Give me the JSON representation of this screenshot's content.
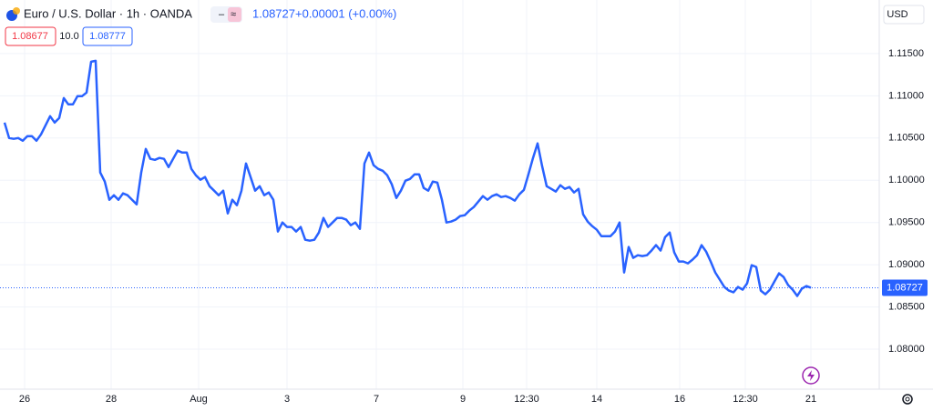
{
  "header": {
    "symbol": "Euro / U.S. Dollar · 1h · OANDA",
    "price": "1.08727",
    "change": "+0.00001 (+0.00%)",
    "bid": "1.08677",
    "spread": "10.0",
    "ask": "1.08777",
    "currency": "USD"
  },
  "chart_data": {
    "type": "line",
    "series": [
      {
        "name": "EURUSD",
        "color": "#2962ff",
        "values": [
          1.10683,
          1.105,
          1.1049,
          1.105,
          1.10468,
          1.10522,
          1.10522,
          1.10468,
          1.10543,
          1.10651,
          1.10758,
          1.10683,
          1.10737,
          1.10973,
          1.10898,
          1.10898,
          1.10995,
          1.10995,
          1.11038,
          1.11403,
          1.11414,
          1.10092,
          1.09984,
          1.09769,
          1.09823,
          1.09769,
          1.09844,
          1.09823,
          1.09769,
          1.09715,
          1.10092,
          1.10371,
          1.10253,
          1.10242,
          1.10264,
          1.10253,
          1.10156,
          1.10253,
          1.1035,
          1.10328,
          1.10328,
          1.10135,
          1.10059,
          1.10006,
          1.10038,
          1.0993,
          1.09877,
          1.09823,
          1.09877,
          1.09608,
          1.09769,
          1.09705,
          1.09877,
          1.10199,
          1.10038,
          1.09877,
          1.0993,
          1.09823,
          1.09855,
          1.09769,
          1.09393,
          1.095,
          1.09447,
          1.09447,
          1.09393,
          1.09447,
          1.09296,
          1.09285,
          1.09296,
          1.09382,
          1.09554,
          1.09447,
          1.095,
          1.09554,
          1.09554,
          1.09533,
          1.09468,
          1.095,
          1.09425,
          1.10199,
          1.10328,
          1.10178,
          1.10135,
          1.10113,
          1.10059,
          1.09952,
          1.09791,
          1.09877,
          1.09995,
          1.10016,
          1.1007,
          1.1007,
          1.09909,
          1.09877,
          1.09984,
          1.09973,
          1.09769,
          1.095,
          1.09511,
          1.09533,
          1.09576,
          1.09586,
          1.0964,
          1.09683,
          1.09748,
          1.09812,
          1.09769,
          1.09812,
          1.09834,
          1.09801,
          1.09812,
          1.09791,
          1.09758,
          1.09834,
          1.09887,
          1.1007,
          1.10264,
          1.10436,
          1.10167,
          1.0993,
          1.09898,
          1.09866,
          1.09941,
          1.09898,
          1.0992,
          1.09855,
          1.09898,
          1.09597,
          1.09511,
          1.09457,
          1.09414,
          1.09339,
          1.09339,
          1.09339,
          1.09393,
          1.095,
          1.08909,
          1.0921,
          1.09081,
          1.09113,
          1.09103,
          1.09113,
          1.09167,
          1.09232,
          1.09167,
          1.09328,
          1.09382,
          1.09146,
          1.09038,
          1.09038,
          1.09017,
          1.0906,
          1.09113,
          1.09232,
          1.09156,
          1.09038,
          1.08909,
          1.08823,
          1.08737,
          1.08694,
          1.08673,
          1.08737,
          1.08705,
          1.0878,
          1.08995,
          1.08974,
          1.08694,
          1.08651,
          1.08705,
          1.08802,
          1.08898,
          1.08855,
          1.08759,
          1.08705,
          1.0863,
          1.08716,
          1.08748,
          1.08727
        ]
      }
    ],
    "xlim": [
      0,
      193
    ],
    "xticks": [
      {
        "value": 5.4,
        "label": "26"
      },
      {
        "value": 24.4,
        "label": "28"
      },
      {
        "value": 43.6,
        "label": "Aug"
      },
      {
        "value": 63,
        "label": "3"
      },
      {
        "value": 82.6,
        "label": "7"
      },
      {
        "value": 101.6,
        "label": "9"
      },
      {
        "value": 115.6,
        "label": "12:30"
      },
      {
        "value": 131,
        "label": "14"
      },
      {
        "value": 149.2,
        "label": "16"
      },
      {
        "value": 163.6,
        "label": "12:30"
      },
      {
        "value": 178,
        "label": "21"
      }
    ],
    "ylim": [
      1.07527,
      1.12134
    ],
    "yticks": [
      {
        "value": 1.08,
        "label": "1.08000"
      },
      {
        "value": 1.085,
        "label": "1.08500"
      },
      {
        "value": 1.09,
        "label": "1.09000"
      },
      {
        "value": 1.095,
        "label": "1.09500"
      },
      {
        "value": 1.1,
        "label": "1.10000"
      },
      {
        "value": 1.105,
        "label": "1.10500"
      },
      {
        "value": 1.11,
        "label": "1.11000"
      },
      {
        "value": 1.115,
        "label": "1.11500"
      }
    ],
    "grid": true
  }
}
